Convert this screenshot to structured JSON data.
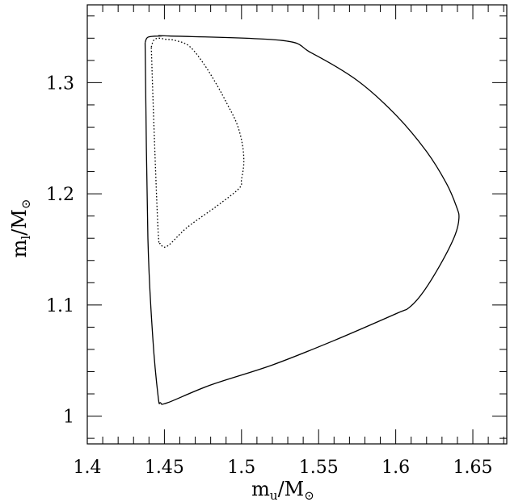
{
  "chart_data": {
    "type": "line",
    "title": "",
    "xlabel": "m_u/M_⊙",
    "xlabel_parts": {
      "base": "m",
      "subscript": "u",
      "slash": "/M",
      "sun_subscript": "⊙"
    },
    "ylabel": "m_l/M_⊙",
    "ylabel_parts": {
      "base": "m",
      "subscript": "l",
      "slash": "/M",
      "sun_subscript": "⊙"
    },
    "xlim": [
      1.4,
      1.672
    ],
    "ylim": [
      0.975,
      1.37
    ],
    "x_ticks_major": [
      1.4,
      1.45,
      1.5,
      1.55,
      1.6,
      1.65
    ],
    "x_tick_labels": [
      "1.4",
      "1.45",
      "1.5",
      "1.55",
      "1.6",
      "1.65"
    ],
    "x_tick_minor_step": 0.01,
    "y_ticks_major": [
      1.0,
      1.1,
      1.2,
      1.3
    ],
    "y_tick_labels": [
      "1",
      "1.1",
      "1.2",
      "1.3"
    ],
    "y_tick_minor_step": 0.02,
    "grid": false,
    "legend": "none",
    "series": [
      {
        "style": "solid",
        "color": "#000000",
        "closed": true,
        "x": [
          1.4375,
          1.4395,
          1.448,
          1.453,
          1.526,
          1.545,
          1.575,
          1.6,
          1.62,
          1.633,
          1.6395,
          1.641,
          1.6385,
          1.63,
          1.618,
          1.609,
          1.6,
          1.56,
          1.52,
          1.48,
          1.452,
          1.4475,
          1.446,
          1.4425,
          1.4393,
          1.4375
        ],
        "y": [
          1.336,
          1.341,
          1.342,
          1.342,
          1.338,
          1.327,
          1.302,
          1.271,
          1.238,
          1.209,
          1.188,
          1.178,
          1.163,
          1.139,
          1.112,
          1.098,
          1.092,
          1.068,
          1.046,
          1.028,
          1.012,
          1.012,
          1.017,
          1.07,
          1.16,
          1.336
        ]
      },
      {
        "style": "dotted",
        "color": "#000000",
        "closed": true,
        "x": [
          1.4415,
          1.443,
          1.446,
          1.451,
          1.457,
          1.466,
          1.475,
          1.484,
          1.491,
          1.497,
          1.5005,
          1.5015,
          1.5,
          1.4985,
          1.485,
          1.465,
          1.452,
          1.4475,
          1.446,
          1.4435,
          1.4415
        ],
        "y": [
          1.332,
          1.338,
          1.34,
          1.339,
          1.338,
          1.333,
          1.318,
          1.298,
          1.28,
          1.263,
          1.245,
          1.228,
          1.213,
          1.205,
          1.19,
          1.17,
          1.153,
          1.155,
          1.165,
          1.25,
          1.332
        ]
      }
    ]
  }
}
